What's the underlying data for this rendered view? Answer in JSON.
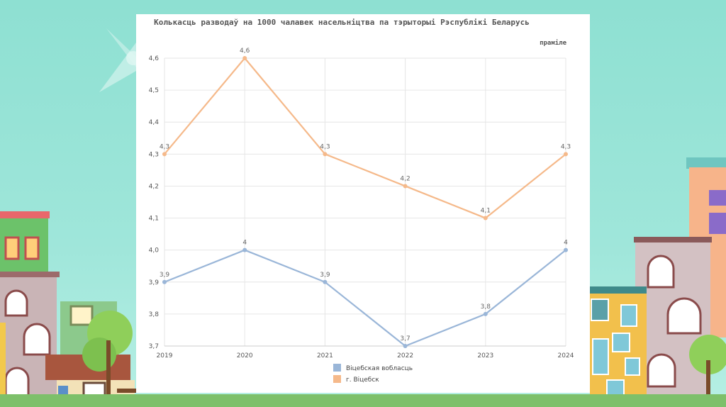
{
  "colors": {
    "series_1": "#9ab6d8",
    "series_2": "#f5b98a",
    "grid": "#e6e6e6",
    "background": "#a0e6da"
  },
  "chart_data": {
    "type": "line",
    "title": "Колькасць разводаў на 1000 чалавек насельніцтва па тэрыторыі Рэспублікі Беларусь",
    "unit_label": "праміле",
    "x": [
      "2019",
      "2020",
      "2021",
      "2022",
      "2023",
      "2024"
    ],
    "y_ticks": [
      "4,6",
      "4,5",
      "4,4",
      "4,3",
      "4,2",
      "4,1",
      "4,0",
      "3,9",
      "3,8",
      "3,7"
    ],
    "series": [
      {
        "name": "Віцебская вобласць",
        "values": [
          3.9,
          4.0,
          3.9,
          3.7,
          3.8,
          4.0
        ],
        "labels": [
          "3,9",
          "4",
          "3,9",
          "3,7",
          "3,8",
          "4"
        ]
      },
      {
        "name": "г. Віцебск",
        "values": [
          4.3,
          4.6,
          4.3,
          4.2,
          4.1,
          4.3
        ],
        "labels": [
          "4,3",
          "4,6",
          "4,3",
          "4,2",
          "4,1",
          "4,3"
        ]
      }
    ],
    "grid": true,
    "legend": "bottom-center"
  }
}
